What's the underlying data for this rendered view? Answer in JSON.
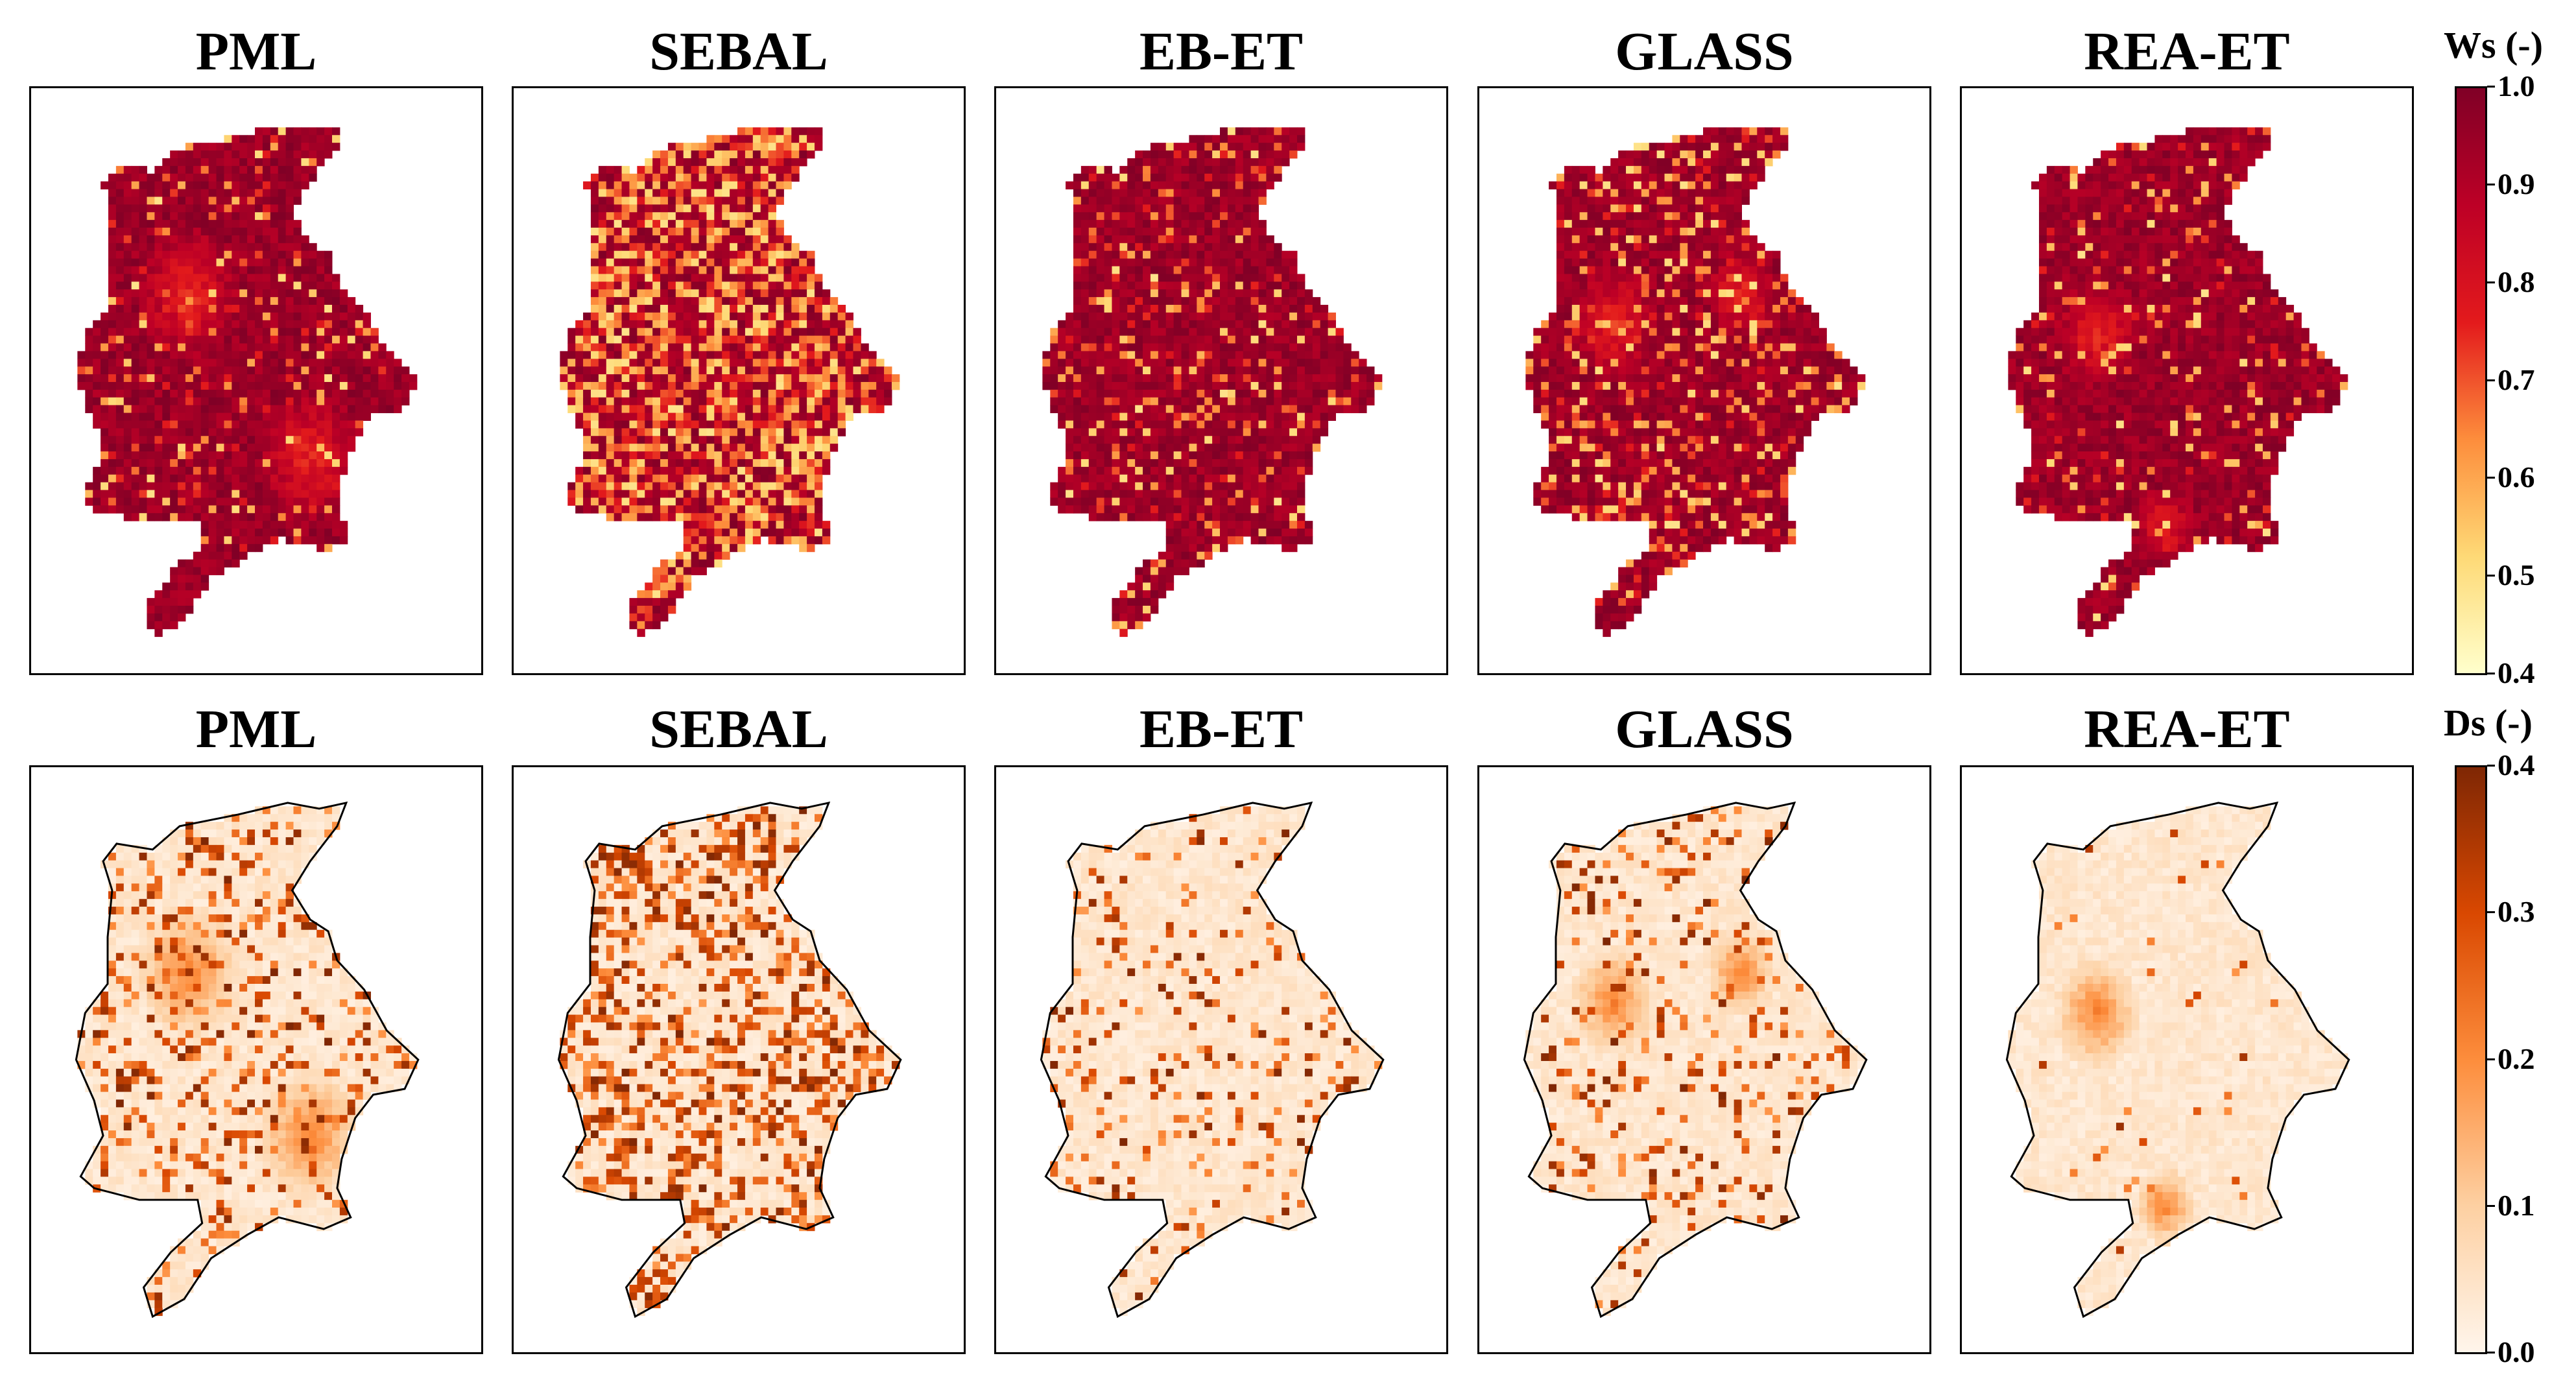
{
  "rows": [
    {
      "variable": "Ws",
      "colorbar_label": "Ws (-)",
      "colorbar_ticks": [
        "1.0",
        "0.9",
        "0.8",
        "0.7",
        "0.6",
        "0.5",
        "0.4"
      ],
      "range": [
        0.4,
        1.0
      ],
      "colormap": [
        "#ffffcc",
        "#fed976",
        "#fd8d3c",
        "#e31a1c",
        "#bd0026",
        "#800026"
      ],
      "panels": [
        {
          "title": "PML"
        },
        {
          "title": "SEBAL"
        },
        {
          "title": "EB-ET"
        },
        {
          "title": "GLASS"
        },
        {
          "title": "REA-ET"
        }
      ]
    },
    {
      "variable": "Ds",
      "colorbar_label": "Ds (-)",
      "colorbar_ticks": [
        "0.4",
        "0.3",
        "0.2",
        "0.1",
        "0.0"
      ],
      "range": [
        0.0,
        0.4
      ],
      "colormap": [
        "#fff5eb",
        "#fdd0a2",
        "#fd8d3c",
        "#d94801",
        "#7f2704"
      ],
      "panels": [
        {
          "title": "PML"
        },
        {
          "title": "SEBAL"
        },
        {
          "title": "EB-ET"
        },
        {
          "title": "GLASS"
        },
        {
          "title": "REA-ET"
        }
      ]
    }
  ]
}
